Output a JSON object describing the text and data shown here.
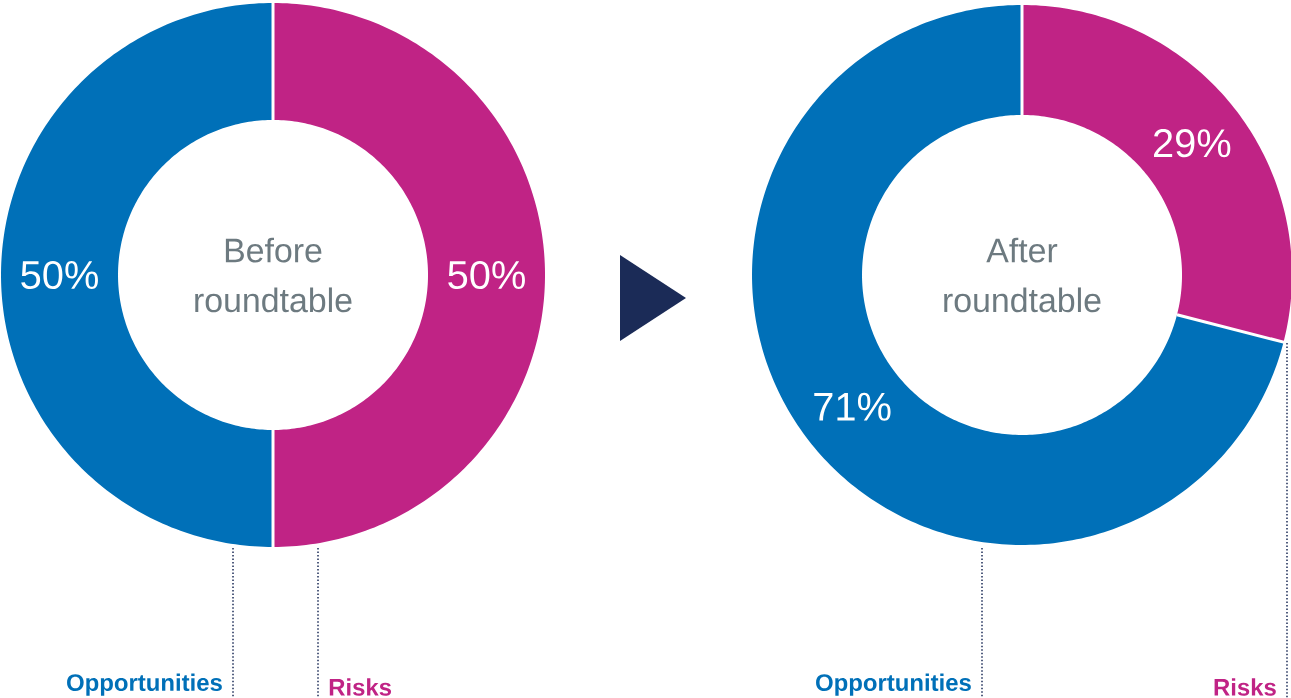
{
  "chart_data": [
    {
      "type": "donut",
      "title": "Before roundtable",
      "categories": [
        "Opportunities",
        "Risks"
      ],
      "values": [
        50,
        50
      ],
      "colors": [
        "#0070b8",
        "#c02385"
      ],
      "value_labels": [
        "50%",
        "50%"
      ]
    },
    {
      "type": "donut",
      "title": "After roundtable",
      "categories": [
        "Opportunities",
        "Risks"
      ],
      "values": [
        71,
        29
      ],
      "colors": [
        "#0070b8",
        "#c02385"
      ],
      "value_labels": [
        "71%",
        "29%"
      ]
    }
  ]
}
